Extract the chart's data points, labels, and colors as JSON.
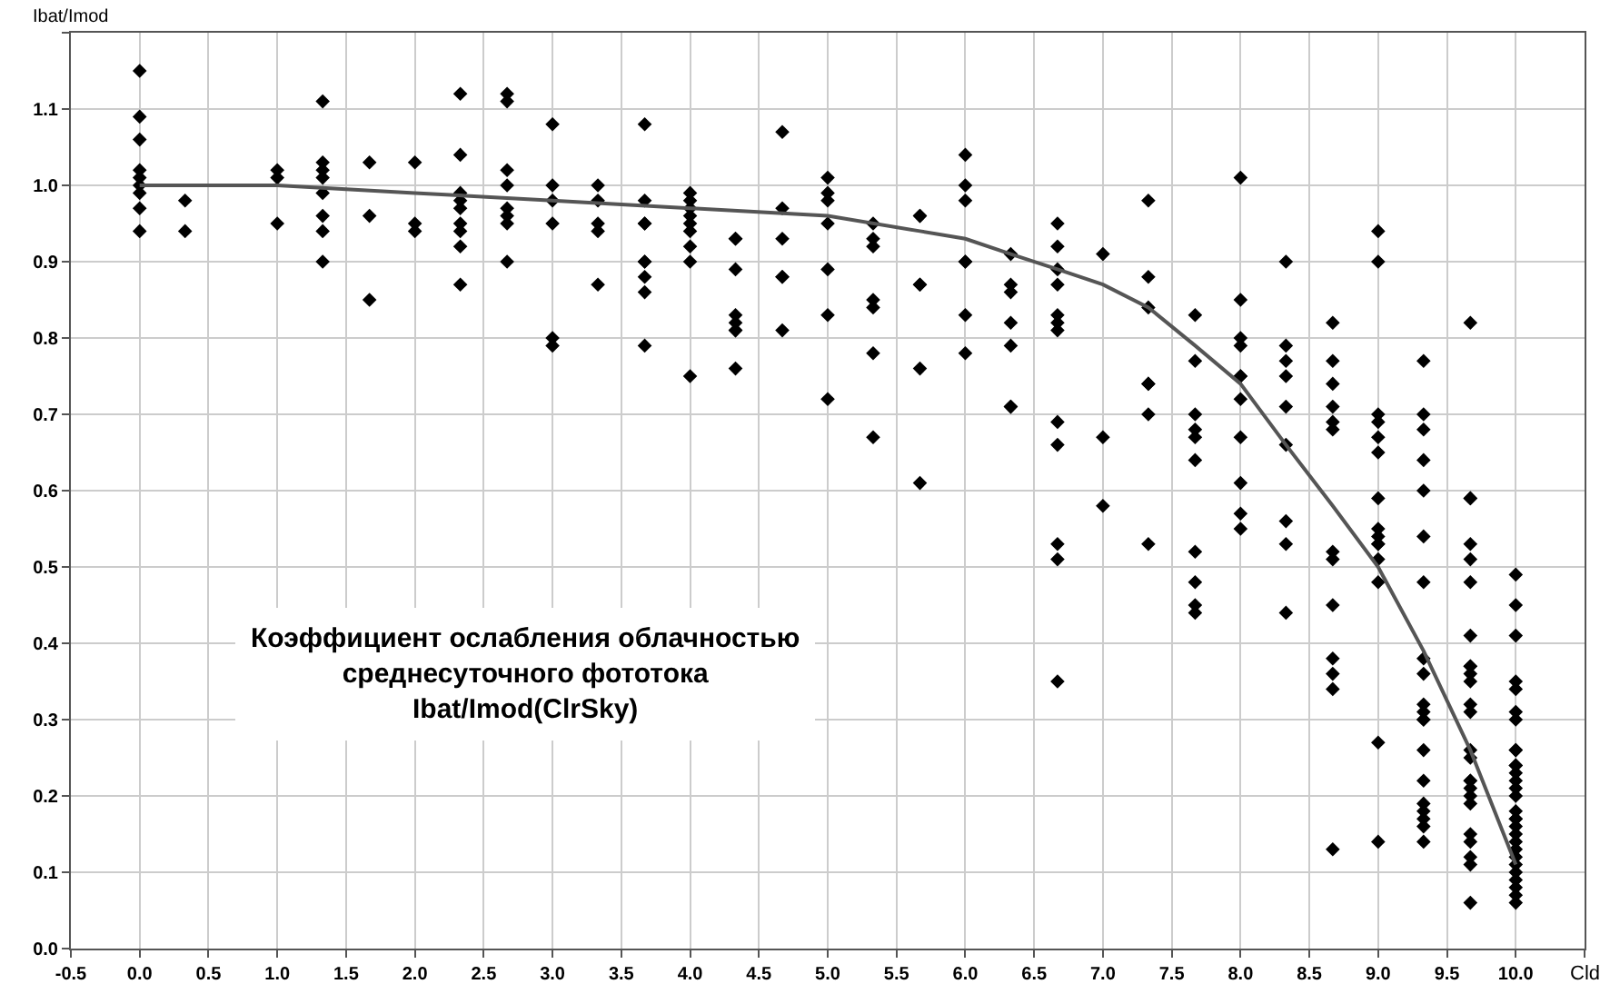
{
  "chart_data": {
    "type": "scatter",
    "xlabel": "Cld",
    "ylabel": "Ibat/Imod",
    "annotations": [
      "Коэффициент ослабления облачностью\nсреднесуточного фототока\nIbat/Imod(ClrSky)"
    ],
    "xlim": [
      -0.5,
      10.5
    ],
    "ylim": [
      0,
      1.2
    ],
    "xticks": [
      -0.5,
      {
        "value": 0,
        "label": "0.0"
      },
      0.5,
      {
        "value": 1,
        "label": "1.0"
      },
      1.5,
      {
        "value": 2,
        "label": "2.0"
      },
      2.5,
      {
        "value": 3,
        "label": "3.0"
      },
      3.5,
      {
        "value": 4,
        "label": "4.0"
      },
      4.5,
      {
        "value": 5,
        "label": "5.0"
      },
      5.5,
      {
        "value": 6,
        "label": "6.0"
      },
      6.5,
      {
        "value": 7,
        "label": "7.0"
      },
      7.5,
      {
        "value": 8,
        "label": "8.0"
      },
      8.5,
      {
        "value": 9,
        "label": "9.0"
      },
      9.5,
      {
        "value": 10,
        "label": "10.0"
      },
      {
        "value": 10.5,
        "label": null
      }
    ],
    "yticks": [
      {
        "value": 0,
        "label": "0.0"
      },
      0.1,
      0.2,
      0.3,
      0.4,
      0.5,
      0.6,
      0.7,
      0.8,
      0.9,
      {
        "value": 1,
        "label": "1.0"
      },
      1.1,
      {
        "value": 1.2,
        "label": null
      }
    ],
    "grid": true,
    "line_style": "solid",
    "series": [
      {
        "color": "#000000",
        "marker": "diamond",
        "x": [
          0,
          0,
          0,
          0,
          0,
          0,
          0,
          0,
          0,
          0.33,
          0.33,
          1,
          1,
          1,
          1.33,
          1.33,
          1.33,
          1.33,
          1.33,
          1.33,
          1.33,
          1.33,
          1.67,
          1.67,
          1.67,
          2,
          2,
          2,
          2.33,
          2.33,
          2.33,
          2.33,
          2.33,
          2.33,
          2.33,
          2.33,
          2.33,
          2.67,
          2.67,
          2.67,
          2.67,
          2.67,
          2.67,
          2.67,
          2.67,
          3,
          3,
          3,
          3,
          3,
          3,
          3.33,
          3.33,
          3.33,
          3.33,
          3.33,
          3.67,
          3.67,
          3.67,
          3.67,
          3.67,
          3.67,
          3.67,
          3.67,
          3.67,
          4,
          4,
          4,
          4,
          4,
          4,
          4,
          4,
          4,
          4.33,
          4.33,
          4.33,
          4.33,
          4.33,
          4.33,
          4.33,
          4.33,
          4.67,
          4.67,
          4.67,
          4.67,
          4.67,
          4.67,
          5,
          5,
          5,
          5,
          5,
          5,
          5,
          5.33,
          5.33,
          5.33,
          5.33,
          5.33,
          5.33,
          5.33,
          5.67,
          5.67,
          5.67,
          5.67,
          5.67,
          5.67,
          6,
          6,
          6,
          6,
          6,
          6,
          6,
          6.33,
          6.33,
          6.33,
          6.33,
          6.33,
          6.33,
          6.33,
          6.67,
          6.67,
          6.67,
          6.67,
          6.67,
          6.67,
          6.67,
          6.67,
          6.67,
          6.67,
          6.67,
          6.67,
          7,
          7,
          7,
          7.33,
          7.33,
          7.33,
          7.33,
          7.33,
          7.33,
          7.33,
          7.67,
          7.67,
          7.67,
          7.67,
          7.67,
          7.67,
          7.67,
          7.67,
          7.67,
          7.67,
          8,
          8,
          8,
          8,
          8,
          8,
          8,
          8,
          8,
          8,
          8,
          8.33,
          8.33,
          8.33,
          8.33,
          8.33,
          8.33,
          8.33,
          8.33,
          8.33,
          8.67,
          8.67,
          8.67,
          8.67,
          8.67,
          8.67,
          8.67,
          8.67,
          8.67,
          8.67,
          8.67,
          8.67,
          8.67,
          9,
          9,
          9,
          9,
          9,
          9,
          9,
          9,
          9,
          9,
          9,
          9,
          9,
          9,
          9,
          9.33,
          9.33,
          9.33,
          9.33,
          9.33,
          9.33,
          9.33,
          9.33,
          9.33,
          9.33,
          9.33,
          9.33,
          9.33,
          9.33,
          9.33,
          9.33,
          9.33,
          9.33,
          9.33,
          9.33,
          9.67,
          9.67,
          9.67,
          9.67,
          9.67,
          9.67,
          9.67,
          9.67,
          9.67,
          9.67,
          9.67,
          9.67,
          9.67,
          9.67,
          9.67,
          9.67,
          9.67,
          9.67,
          9.67,
          9.67,
          9.67,
          9.67,
          9.67,
          9.67,
          9.67,
          10,
          10,
          10,
          10,
          10,
          10,
          10,
          10,
          10,
          10,
          10,
          10,
          10,
          10,
          10,
          10,
          10,
          10,
          10,
          10,
          10,
          10,
          10,
          10,
          10,
          10,
          10,
          10,
          10
        ],
        "values": [
          1.15,
          1.09,
          1.06,
          1.02,
          1.01,
          1.0,
          0.99,
          0.97,
          0.94,
          0.98,
          0.94,
          1.02,
          1.01,
          0.95,
          1.11,
          1.03,
          1.02,
          1.01,
          0.99,
          0.96,
          0.94,
          0.9,
          1.03,
          0.96,
          0.85,
          1.03,
          0.95,
          0.94,
          1.12,
          1.04,
          0.99,
          0.98,
          0.97,
          0.95,
          0.94,
          0.92,
          0.87,
          1.12,
          1.11,
          1.02,
          1.0,
          0.97,
          0.96,
          0.95,
          0.9,
          1.08,
          1.0,
          0.98,
          0.95,
          0.8,
          0.79,
          1.0,
          0.98,
          0.95,
          0.94,
          0.87,
          1.08,
          0.98,
          0.95,
          0.95,
          0.9,
          0.9,
          0.88,
          0.86,
          0.79,
          0.99,
          0.98,
          0.97,
          0.96,
          0.95,
          0.94,
          0.92,
          0.9,
          0.75,
          0.93,
          0.93,
          0.89,
          0.83,
          0.82,
          0.81,
          0.81,
          0.76,
          1.07,
          0.97,
          0.93,
          0.88,
          0.88,
          0.81,
          1.01,
          0.99,
          0.98,
          0.95,
          0.89,
          0.83,
          0.72,
          0.95,
          0.93,
          0.92,
          0.85,
          0.84,
          0.78,
          0.67,
          0.96,
          0.96,
          0.87,
          0.87,
          0.76,
          0.61,
          1.04,
          1.0,
          0.98,
          0.9,
          0.9,
          0.83,
          0.78,
          0.91,
          0.87,
          0.86,
          0.82,
          0.79,
          0.71,
          0.71,
          0.95,
          0.92,
          0.89,
          0.87,
          0.83,
          0.82,
          0.81,
          0.69,
          0.66,
          0.53,
          0.51,
          0.35,
          0.91,
          0.67,
          0.58,
          0.98,
          0.88,
          0.84,
          0.74,
          0.74,
          0.7,
          0.53,
          0.83,
          0.77,
          0.7,
          0.68,
          0.67,
          0.64,
          0.52,
          0.48,
          0.45,
          0.44,
          1.01,
          0.85,
          0.8,
          0.79,
          0.75,
          0.75,
          0.72,
          0.67,
          0.61,
          0.57,
          0.55,
          0.9,
          0.79,
          0.77,
          0.75,
          0.71,
          0.66,
          0.56,
          0.53,
          0.44,
          0.82,
          0.77,
          0.74,
          0.71,
          0.69,
          0.68,
          0.52,
          0.51,
          0.45,
          0.38,
          0.36,
          0.34,
          0.13,
          0.94,
          0.9,
          0.7,
          0.69,
          0.67,
          0.65,
          0.59,
          0.55,
          0.54,
          0.53,
          0.53,
          0.51,
          0.48,
          0.27,
          0.14,
          0.77,
          0.7,
          0.68,
          0.64,
          0.6,
          0.54,
          0.48,
          0.38,
          0.36,
          0.32,
          0.31,
          0.3,
          0.3,
          0.26,
          0.22,
          0.19,
          0.18,
          0.17,
          0.16,
          0.14,
          0.82,
          0.59,
          0.59,
          0.53,
          0.51,
          0.48,
          0.41,
          0.37,
          0.37,
          0.36,
          0.35,
          0.32,
          0.31,
          0.26,
          0.25,
          0.22,
          0.22,
          0.21,
          0.2,
          0.19,
          0.15,
          0.14,
          0.12,
          0.11,
          0.06,
          0.49,
          0.45,
          0.41,
          0.35,
          0.34,
          0.31,
          0.3,
          0.26,
          0.26,
          0.24,
          0.24,
          0.23,
          0.22,
          0.21,
          0.2,
          0.18,
          0.17,
          0.17,
          0.16,
          0.15,
          0.14,
          0.13,
          0.12,
          0.11,
          0.1,
          0.09,
          0.08,
          0.07,
          0.06
        ]
      },
      {
        "type": "line",
        "color": "#555555",
        "marker": "none",
        "x": [
          0,
          1,
          2,
          3,
          4,
          5,
          5.67,
          6,
          6.33,
          6.67,
          7,
          7.33,
          7.67,
          8,
          8.33,
          8.67,
          9,
          9.33,
          9.67,
          10
        ],
        "values": [
          1.0,
          1.0,
          0.99,
          0.98,
          0.97,
          0.96,
          0.94,
          0.93,
          0.91,
          0.89,
          0.87,
          0.84,
          0.79,
          0.74,
          0.66,
          0.58,
          0.5,
          0.39,
          0.26,
          0.11
        ]
      }
    ]
  }
}
